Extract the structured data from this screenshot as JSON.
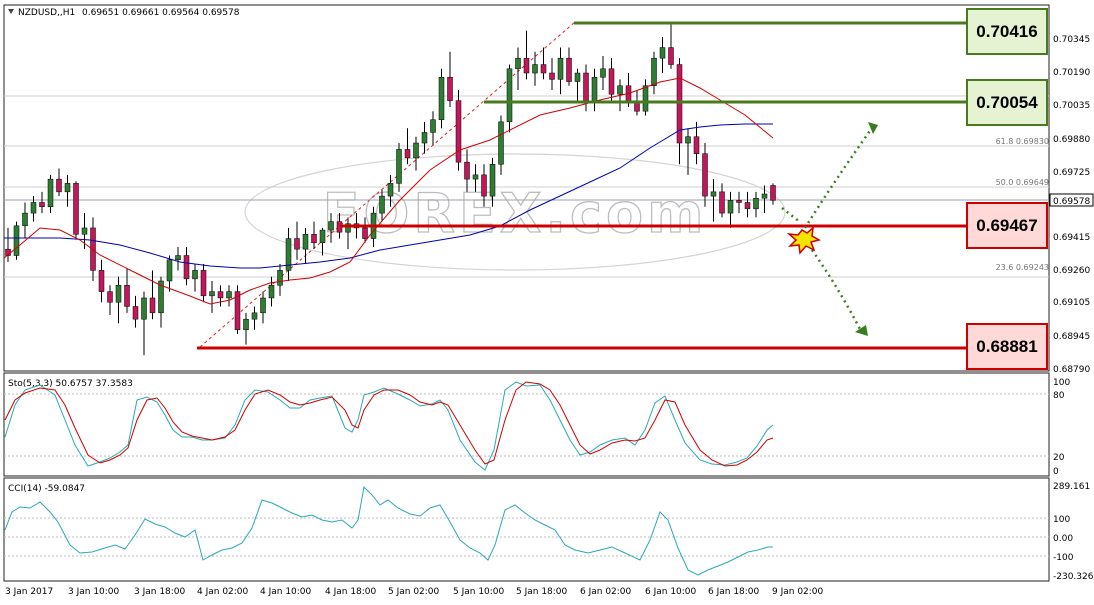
{
  "header": {
    "symbol": "NZDUSD,,H1",
    "ohlc": "0.69651 0.69661 0.69564 0.69578"
  },
  "price_axis": {
    "ticks": [
      "0.70345",
      "0.70190",
      "0.70035",
      "0.69880",
      "0.69725",
      "0.69415",
      "0.69260",
      "0.69105",
      "0.68945",
      "0.68790"
    ],
    "current_price": "0.69578"
  },
  "levels": [
    {
      "label": "0.70416",
      "price": 0.70416,
      "kind": "resistance",
      "color": "#4a7a1e",
      "box_fill": "#e6f3d3"
    },
    {
      "label": "0.70054",
      "price": 0.70054,
      "kind": "resistance",
      "color": "#4a7a1e",
      "box_fill": "#e6f3d3"
    },
    {
      "label": "0.69467",
      "price": 0.69467,
      "kind": "pivot",
      "color": "#cc0000",
      "box_fill": "#ffd8d8"
    },
    {
      "label": "0.68881",
      "price": 0.68881,
      "kind": "support",
      "color": "#cc0000",
      "box_fill": "#ffd8d8"
    }
  ],
  "fibonacci": [
    {
      "label": "61.8 0.69830",
      "price": 0.6983
    },
    {
      "label": "50.0 0.69649",
      "price": 0.69649
    },
    {
      "label": "23.6 0.69243",
      "price": 0.69243
    }
  ],
  "stochastic": {
    "label": "Sto(5,3,3) 50.6757 37.3583",
    "ticks": [
      "100",
      "80",
      "20",
      "0"
    ]
  },
  "cci": {
    "label": "CCI(14) -59.0847",
    "ticks": [
      "289.161",
      "100",
      "0.00",
      "-100",
      "-230.326"
    ]
  },
  "time_axis": [
    "3 Jan 2017",
    "3 Jan 10:00",
    "3 Jan 18:00",
    "4 Jan 02:00",
    "4 Jan 10:00",
    "4 Jan 18:00",
    "5 Jan 02:00",
    "5 Jan 10:00",
    "5 Jan 18:00",
    "6 Jan 02:00",
    "6 Jan 10:00",
    "6 Jan 18:00",
    "9 Jan 02:00"
  ],
  "watermark": "FOREX.com",
  "colors": {
    "bull": "#2e7d32",
    "bear": "#c2185b",
    "ma_fast": "#d00000",
    "ma_slow": "#0000b0",
    "sto_main": "#2aa9b3",
    "sto_signal": "#d00000",
    "cci": "#2aa9b3",
    "arrow": "#3a7d1e"
  },
  "icons": {
    "explosion": "explosion-icon",
    "arrow_up": "arrow-up-icon",
    "arrow_down": "arrow-down-icon"
  },
  "chart_data": {
    "type": "candlestick",
    "symbol": "NZDUSD",
    "timeframe": "H1",
    "candles": [
      [
        0.6935,
        0.6945,
        0.6929,
        0.6932
      ],
      [
        0.6932,
        0.6948,
        0.693,
        0.6946
      ],
      [
        0.6946,
        0.6957,
        0.694,
        0.6952
      ],
      [
        0.6952,
        0.696,
        0.6948,
        0.6957
      ],
      [
        0.6957,
        0.6962,
        0.6952,
        0.6955
      ],
      [
        0.6955,
        0.697,
        0.6952,
        0.6968
      ],
      [
        0.6968,
        0.6973,
        0.696,
        0.6962
      ],
      [
        0.6962,
        0.697,
        0.6955,
        0.6966
      ],
      [
        0.6966,
        0.6967,
        0.694,
        0.6942
      ],
      [
        0.6942,
        0.6952,
        0.6935,
        0.6945
      ],
      [
        0.6945,
        0.695,
        0.692,
        0.6925
      ],
      [
        0.6925,
        0.693,
        0.691,
        0.6915
      ],
      [
        0.6915,
        0.6918,
        0.6904,
        0.691
      ],
      [
        0.691,
        0.6922,
        0.69,
        0.6918
      ],
      [
        0.6918,
        0.6926,
        0.6905,
        0.6908
      ],
      [
        0.6908,
        0.6913,
        0.6898,
        0.6902
      ],
      [
        0.6902,
        0.6915,
        0.6885,
        0.6912
      ],
      [
        0.6912,
        0.6925,
        0.6902,
        0.6905
      ],
      [
        0.6905,
        0.6922,
        0.6898,
        0.692
      ],
      [
        0.692,
        0.6932,
        0.6915,
        0.693
      ],
      [
        0.693,
        0.6936,
        0.6925,
        0.6932
      ],
      [
        0.6932,
        0.6936,
        0.6918,
        0.6921
      ],
      [
        0.6921,
        0.6928,
        0.6915,
        0.6925
      ],
      [
        0.6925,
        0.6928,
        0.691,
        0.6913
      ],
      [
        0.6913,
        0.692,
        0.6905,
        0.6915
      ],
      [
        0.6915,
        0.6918,
        0.6908,
        0.6912
      ],
      [
        0.6912,
        0.6918,
        0.6908,
        0.6915
      ],
      [
        0.6915,
        0.6918,
        0.6895,
        0.6897
      ],
      [
        0.6897,
        0.6905,
        0.689,
        0.6902
      ],
      [
        0.6902,
        0.6908,
        0.6897,
        0.6905
      ],
      [
        0.6905,
        0.6915,
        0.69,
        0.6912
      ],
      [
        0.6912,
        0.6922,
        0.6908,
        0.6918
      ],
      [
        0.6918,
        0.6928,
        0.6913,
        0.6925
      ],
      [
        0.6925,
        0.6945,
        0.692,
        0.694
      ],
      [
        0.694,
        0.6948,
        0.693,
        0.6935
      ],
      [
        0.6935,
        0.6945,
        0.6928,
        0.6942
      ],
      [
        0.6942,
        0.6948,
        0.6935,
        0.6938
      ],
      [
        0.6938,
        0.6945,
        0.6932,
        0.6944
      ],
      [
        0.6944,
        0.6952,
        0.6938,
        0.6948
      ],
      [
        0.6948,
        0.6952,
        0.694,
        0.6943
      ],
      [
        0.6943,
        0.695,
        0.6935,
        0.6947
      ],
      [
        0.6947,
        0.6952,
        0.694,
        0.6945
      ],
      [
        0.6945,
        0.695,
        0.6938,
        0.694
      ],
      [
        0.694,
        0.6955,
        0.6936,
        0.6952
      ],
      [
        0.6952,
        0.6963,
        0.6948,
        0.696
      ],
      [
        0.696,
        0.697,
        0.6955,
        0.6966
      ],
      [
        0.6966,
        0.6985,
        0.6962,
        0.6982
      ],
      [
        0.6982,
        0.6992,
        0.6975,
        0.6978
      ],
      [
        0.6978,
        0.6988,
        0.6972,
        0.6985
      ],
      [
        0.6985,
        0.6995,
        0.698,
        0.699
      ],
      [
        0.699,
        0.7,
        0.6984,
        0.6996
      ],
      [
        0.6996,
        0.702,
        0.6992,
        0.7016
      ],
      [
        0.7016,
        0.7028,
        0.7002,
        0.7005
      ],
      [
        0.7005,
        0.701,
        0.6972,
        0.6976
      ],
      [
        0.6976,
        0.6982,
        0.6962,
        0.6968
      ],
      [
        0.6968,
        0.6975,
        0.6962,
        0.697
      ],
      [
        0.697,
        0.6975,
        0.6955,
        0.696
      ],
      [
        0.696,
        0.6978,
        0.6955,
        0.6975
      ],
      [
        0.6975,
        0.6998,
        0.697,
        0.6995
      ],
      [
        0.6995,
        0.7022,
        0.699,
        0.702
      ],
      [
        0.702,
        0.703,
        0.701,
        0.7025
      ],
      [
        0.7025,
        0.7038,
        0.7015,
        0.7018
      ],
      [
        0.7018,
        0.7028,
        0.7012,
        0.7022
      ],
      [
        0.7022,
        0.703,
        0.7015,
        0.7018
      ],
      [
        0.7018,
        0.7025,
        0.701,
        0.7015
      ],
      [
        0.7015,
        0.703,
        0.7008,
        0.7025
      ],
      [
        0.7025,
        0.703,
        0.7012,
        0.7014
      ],
      [
        0.7014,
        0.702,
        0.7005,
        0.7018
      ],
      [
        0.7018,
        0.7022,
        0.7,
        0.7004
      ],
      [
        0.7004,
        0.702,
        0.7,
        0.7016
      ],
      [
        0.7016,
        0.7026,
        0.701,
        0.702
      ],
      [
        0.702,
        0.7025,
        0.7005,
        0.7008
      ],
      [
        0.7008,
        0.7015,
        0.7,
        0.7012
      ],
      [
        0.7012,
        0.7018,
        0.7002,
        0.7004
      ],
      [
        0.7004,
        0.701,
        0.6998,
        0.7
      ],
      [
        0.7,
        0.7015,
        0.6998,
        0.7012
      ],
      [
        0.7012,
        0.7028,
        0.7008,
        0.7025
      ],
      [
        0.7025,
        0.7035,
        0.7018,
        0.703
      ],
      [
        0.703,
        0.7042,
        0.702,
        0.7022
      ],
      [
        0.7022,
        0.7025,
        0.6975,
        0.6985
      ],
      [
        0.6985,
        0.6992,
        0.697,
        0.6988
      ],
      [
        0.6988,
        0.6995,
        0.6975,
        0.698
      ],
      [
        0.698,
        0.6985,
        0.6955,
        0.696
      ],
      [
        0.696,
        0.6968,
        0.6948,
        0.6962
      ],
      [
        0.6962,
        0.6966,
        0.695,
        0.6952
      ],
      [
        0.6952,
        0.6962,
        0.6945,
        0.6958
      ],
      [
        0.6958,
        0.6962,
        0.6952,
        0.6957
      ],
      [
        0.6957,
        0.6962,
        0.695,
        0.6954
      ],
      [
        0.6954,
        0.6962,
        0.695,
        0.6959
      ],
      [
        0.6959,
        0.6965,
        0.6952,
        0.6961
      ],
      [
        0.6965,
        0.6966,
        0.6956,
        0.6958
      ]
    ]
  }
}
